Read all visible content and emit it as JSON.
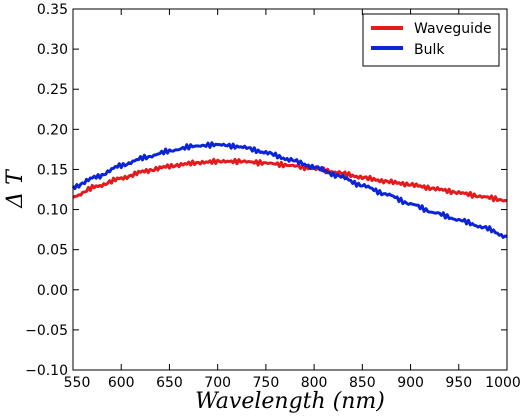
{
  "chart_data": {
    "type": "line",
    "xlabel": "Wavelength (nm)",
    "ylabel": "Δ T",
    "xlim": [
      550,
      1000
    ],
    "ylim": [
      -0.1,
      0.35
    ],
    "x_ticks": [
      550,
      600,
      650,
      700,
      750,
      800,
      850,
      900,
      950,
      1000
    ],
    "x_tick_labels": [
      "550",
      "600",
      "650",
      "700",
      "750",
      "800",
      "850",
      "900",
      "950",
      "1000"
    ],
    "y_ticks": [
      -0.1,
      -0.05,
      0.0,
      0.05,
      0.1,
      0.15,
      0.2,
      0.25,
      0.3,
      0.35
    ],
    "y_tick_labels": [
      "−0.10",
      "−0.05",
      "0.00",
      "0.05",
      "0.10",
      "0.15",
      "0.20",
      "0.25",
      "0.30",
      "0.35"
    ],
    "grid": false,
    "legend_position": "top-right",
    "series": [
      {
        "name": "Waveguide",
        "color": "#e41a1c",
        "x": [
          550,
          575,
          600,
          625,
          650,
          675,
          700,
          725,
          750,
          775,
          800,
          825,
          850,
          875,
          900,
          925,
          950,
          975,
          1000
        ],
        "y": [
          0.116,
          0.129,
          0.139,
          0.148,
          0.154,
          0.158,
          0.16,
          0.16,
          0.158,
          0.155,
          0.151,
          0.146,
          0.14,
          0.135,
          0.131,
          0.126,
          0.121,
          0.116,
          0.111
        ]
      },
      {
        "name": "Bulk",
        "color": "#0b24d6",
        "x": [
          550,
          575,
          600,
          625,
          650,
          675,
          700,
          725,
          750,
          775,
          800,
          825,
          850,
          875,
          900,
          925,
          950,
          975,
          1000
        ],
        "y": [
          0.128,
          0.141,
          0.155,
          0.165,
          0.173,
          0.179,
          0.181,
          0.178,
          0.171,
          0.162,
          0.153,
          0.142,
          0.13,
          0.119,
          0.107,
          0.096,
          0.087,
          0.078,
          0.066
        ]
      }
    ]
  }
}
